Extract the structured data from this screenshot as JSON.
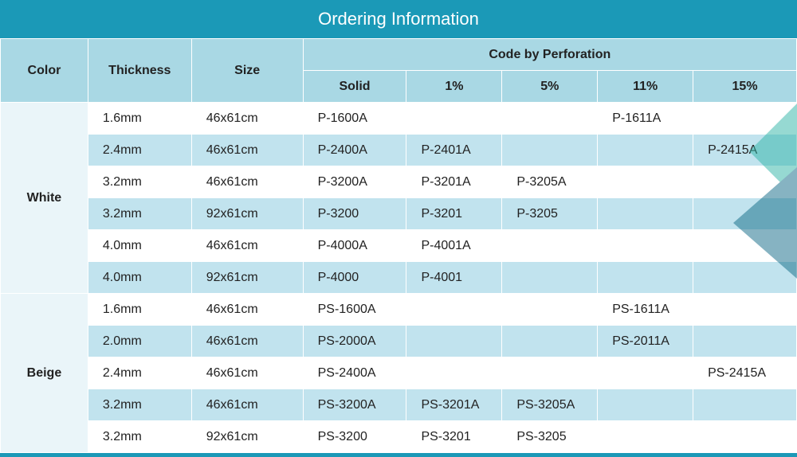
{
  "title": "Ordering Information",
  "colors": {
    "title_bg": "#1b99b7",
    "title_text": "#ffffff",
    "header_bg": "#a9d8e4",
    "row_alt_bg": "#c1e3ee",
    "row_bg": "#ffffff",
    "color_cell_bg": "#eaf5f9",
    "footer": "#1b99b7",
    "decor1": "#2fb5a7",
    "decor2": "#0f6a86"
  },
  "layout": {
    "col_widths_pct": [
      11,
      13,
      14,
      13,
      12,
      12,
      12,
      13
    ]
  },
  "headers": {
    "color": "Color",
    "thickness": "Thickness",
    "size": "Size",
    "perf_group": "Code by Perforation",
    "perf_cols": [
      "Solid",
      "1%",
      "5%",
      "11%",
      "15%"
    ]
  },
  "groups": [
    {
      "color": "White",
      "rows": [
        {
          "thickness": "1.6mm",
          "size": "46x61cm",
          "codes": [
            "P-1600A",
            "",
            "",
            "P-1611A",
            ""
          ],
          "alt": false
        },
        {
          "thickness": "2.4mm",
          "size": "46x61cm",
          "codes": [
            "P-2400A",
            "P-2401A",
            "",
            "",
            "P-2415A"
          ],
          "alt": true
        },
        {
          "thickness": "3.2mm",
          "size": "46x61cm",
          "codes": [
            "P-3200A",
            "P-3201A",
            "P-3205A",
            "",
            ""
          ],
          "alt": false
        },
        {
          "thickness": "3.2mm",
          "size": "92x61cm",
          "codes": [
            "P-3200",
            "P-3201",
            "P-3205",
            "",
            ""
          ],
          "alt": true
        },
        {
          "thickness": "4.0mm",
          "size": "46x61cm",
          "codes": [
            "P-4000A",
            "P-4001A",
            "",
            "",
            ""
          ],
          "alt": false
        },
        {
          "thickness": "4.0mm",
          "size": "92x61cm",
          "codes": [
            "P-4000",
            "P-4001",
            "",
            "",
            ""
          ],
          "alt": true
        }
      ]
    },
    {
      "color": "Beige",
      "rows": [
        {
          "thickness": "1.6mm",
          "size": "46x61cm",
          "codes": [
            "PS-1600A",
            "",
            "",
            "PS-1611A",
            ""
          ],
          "alt": false
        },
        {
          "thickness": "2.0mm",
          "size": "46x61cm",
          "codes": [
            "PS-2000A",
            "",
            "",
            "PS-2011A",
            ""
          ],
          "alt": true
        },
        {
          "thickness": "2.4mm",
          "size": "46x61cm",
          "codes": [
            "PS-2400A",
            "",
            "",
            "",
            "PS-2415A"
          ],
          "alt": false
        },
        {
          "thickness": "3.2mm",
          "size": "46x61cm",
          "codes": [
            "PS-3200A",
            "PS-3201A",
            "PS-3205A",
            "",
            ""
          ],
          "alt": true
        },
        {
          "thickness": "3.2mm",
          "size": "92x61cm",
          "codes": [
            "PS-3200",
            "PS-3201",
            "PS-3205",
            "",
            ""
          ],
          "alt": false
        }
      ]
    }
  ]
}
